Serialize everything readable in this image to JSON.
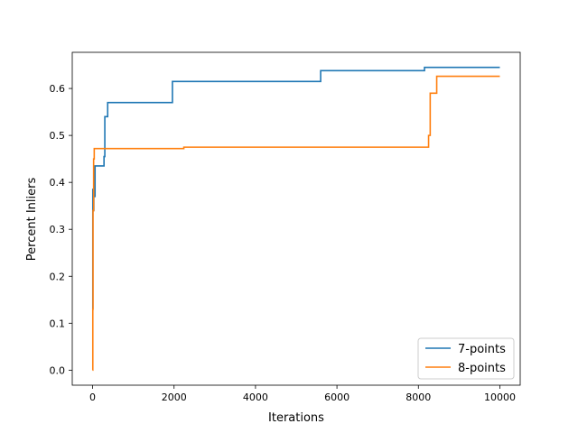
{
  "chart_data": {
    "type": "line",
    "title": "",
    "xlabel": "Iterations",
    "ylabel": "Percent Inliers",
    "xlim": [
      -500,
      10500
    ],
    "ylim": [
      -0.032,
      0.677
    ],
    "xticks": [
      0,
      2000,
      4000,
      6000,
      8000,
      10000
    ],
    "yticks": [
      0.0,
      0.1,
      0.2,
      0.3,
      0.4,
      0.5,
      0.6
    ],
    "xtick_labels": [
      "0",
      "2000",
      "4000",
      "6000",
      "8000",
      "10000"
    ],
    "ytick_labels": [
      "0.0",
      "0.1",
      "0.2",
      "0.3",
      "0.4",
      "0.5",
      "0.6"
    ],
    "grid": false,
    "legend": {
      "position": "lower-right"
    },
    "series": [
      {
        "name": "7-points",
        "color": "#1f77b4",
        "drawstyle": "steps-post",
        "points": [
          [
            0,
            0.13
          ],
          [
            5,
            0.385
          ],
          [
            15,
            0.34
          ],
          [
            30,
            0.37
          ],
          [
            60,
            0.435
          ],
          [
            280,
            0.455
          ],
          [
            300,
            0.54
          ],
          [
            370,
            0.57
          ],
          [
            1960,
            0.615
          ],
          [
            5600,
            0.638
          ],
          [
            8150,
            0.645
          ],
          [
            10000,
            0.645
          ]
        ]
      },
      {
        "name": "8-points",
        "color": "#ff7f0e",
        "drawstyle": "steps-post",
        "points": [
          [
            0,
            0.0
          ],
          [
            5,
            0.13
          ],
          [
            10,
            0.34
          ],
          [
            25,
            0.45
          ],
          [
            40,
            0.472
          ],
          [
            2240,
            0.475
          ],
          [
            8250,
            0.5
          ],
          [
            8290,
            0.59
          ],
          [
            8450,
            0.626
          ],
          [
            10000,
            0.626
          ]
        ]
      }
    ]
  }
}
